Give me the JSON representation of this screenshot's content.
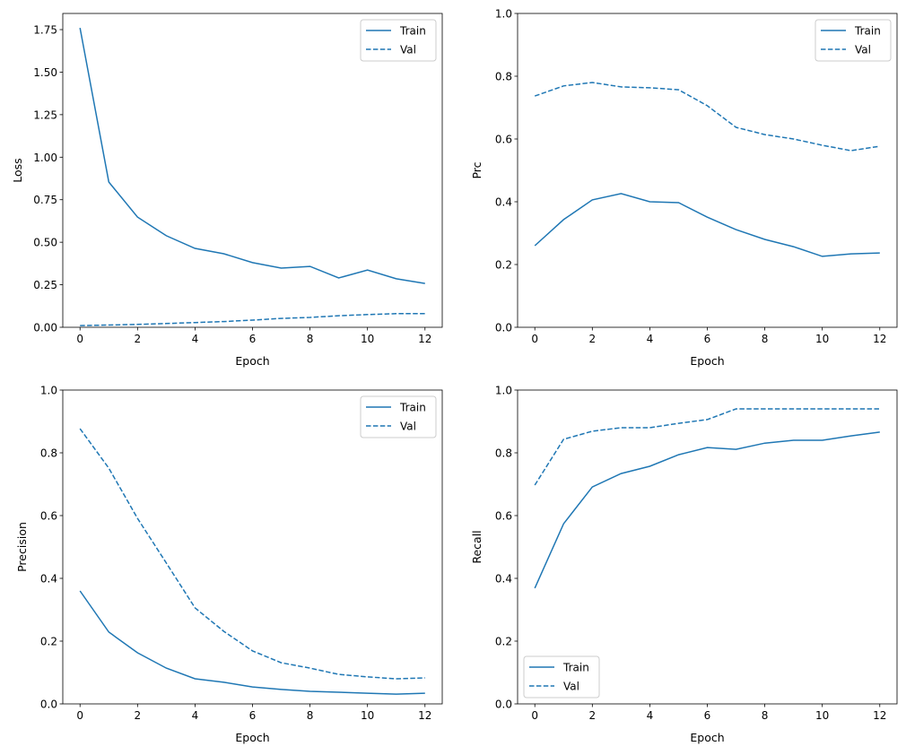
{
  "colors": {
    "series": "#1f77b4",
    "axis": "#000000",
    "legend_border": "#cccccc"
  },
  "chart_data": [
    {
      "type": "line",
      "xlabel": "Epoch",
      "ylabel": "Loss",
      "x": [
        0,
        1,
        2,
        3,
        4,
        5,
        6,
        7,
        8,
        9,
        10,
        11,
        12
      ],
      "xlim": [
        -0.6,
        12.6
      ],
      "ylim": [
        0,
        1.845
      ],
      "xticks": [
        0,
        2,
        4,
        6,
        8,
        10,
        12
      ],
      "yticks": [
        0,
        0.25,
        0.5,
        0.75,
        1.0,
        1.25,
        1.5,
        1.75
      ],
      "ytick_labels": [
        "0.00",
        "0.25",
        "0.50",
        "0.75",
        "1.00",
        "1.25",
        "1.50",
        "1.75"
      ],
      "grid": false,
      "legend": "upper right",
      "series": [
        {
          "name": "Train",
          "style": "solid",
          "values": [
            1.76,
            0.854,
            0.648,
            0.538,
            0.464,
            0.432,
            0.38,
            0.348,
            0.358,
            0.29,
            0.337,
            0.285,
            0.258
          ]
        },
        {
          "name": "Val",
          "style": "dashed",
          "values": [
            0.01,
            0.013,
            0.017,
            0.022,
            0.028,
            0.034,
            0.042,
            0.052,
            0.058,
            0.068,
            0.075,
            0.08,
            0.08
          ]
        }
      ]
    },
    {
      "type": "line",
      "xlabel": "Epoch",
      "ylabel": "Prc",
      "x": [
        0,
        1,
        2,
        3,
        4,
        5,
        6,
        7,
        8,
        9,
        10,
        11,
        12
      ],
      "xlim": [
        -0.6,
        12.6
      ],
      "ylim": [
        0,
        1
      ],
      "xticks": [
        0,
        2,
        4,
        6,
        8,
        10,
        12
      ],
      "yticks": [
        0,
        0.2,
        0.4,
        0.6,
        0.8,
        1.0
      ],
      "ytick_labels": [
        "0.0",
        "0.2",
        "0.4",
        "0.6",
        "0.8",
        "1.0"
      ],
      "grid": false,
      "legend": "upper right",
      "series": [
        {
          "name": "Train",
          "style": "solid",
          "values": [
            0.26,
            0.343,
            0.406,
            0.426,
            0.4,
            0.397,
            0.351,
            0.311,
            0.28,
            0.257,
            0.226,
            0.234,
            0.237
          ]
        },
        {
          "name": "Val",
          "style": "dashed",
          "values": [
            0.737,
            0.769,
            0.78,
            0.766,
            0.763,
            0.757,
            0.706,
            0.637,
            0.614,
            0.6,
            0.58,
            0.563,
            0.577
          ]
        }
      ]
    },
    {
      "type": "line",
      "xlabel": "Epoch",
      "ylabel": "Precision",
      "x": [
        0,
        1,
        2,
        3,
        4,
        5,
        6,
        7,
        8,
        9,
        10,
        11,
        12
      ],
      "xlim": [
        -0.6,
        12.6
      ],
      "ylim": [
        0,
        1
      ],
      "xticks": [
        0,
        2,
        4,
        6,
        8,
        10,
        12
      ],
      "yticks": [
        0,
        0.2,
        0.4,
        0.6,
        0.8,
        1.0
      ],
      "ytick_labels": [
        "0.0",
        "0.2",
        "0.4",
        "0.6",
        "0.8",
        "1.0"
      ],
      "grid": false,
      "legend": "upper right",
      "series": [
        {
          "name": "Train",
          "style": "solid",
          "values": [
            0.36,
            0.229,
            0.163,
            0.114,
            0.08,
            0.069,
            0.054,
            0.046,
            0.04,
            0.037,
            0.034,
            0.031,
            0.034
          ]
        },
        {
          "name": "Val",
          "style": "dashed",
          "values": [
            0.877,
            0.751,
            0.591,
            0.449,
            0.306,
            0.231,
            0.169,
            0.131,
            0.114,
            0.094,
            0.086,
            0.08,
            0.083
          ]
        }
      ]
    },
    {
      "type": "line",
      "xlabel": "Epoch",
      "ylabel": "Recall",
      "x": [
        0,
        1,
        2,
        3,
        4,
        5,
        6,
        7,
        8,
        9,
        10,
        11,
        12
      ],
      "xlim": [
        -0.6,
        12.6
      ],
      "ylim": [
        0,
        1
      ],
      "xticks": [
        0,
        2,
        4,
        6,
        8,
        10,
        12
      ],
      "yticks": [
        0,
        0.2,
        0.4,
        0.6,
        0.8,
        1.0
      ],
      "ytick_labels": [
        "0.0",
        "0.2",
        "0.4",
        "0.6",
        "0.8",
        "1.0"
      ],
      "grid": false,
      "legend": "lower left",
      "series": [
        {
          "name": "Train",
          "style": "solid",
          "values": [
            0.369,
            0.574,
            0.691,
            0.734,
            0.757,
            0.794,
            0.817,
            0.811,
            0.831,
            0.84,
            0.84,
            0.854,
            0.866
          ]
        },
        {
          "name": "Val",
          "style": "dashed",
          "values": [
            0.697,
            0.843,
            0.869,
            0.88,
            0.88,
            0.894,
            0.906,
            0.94,
            0.94,
            0.94,
            0.94,
            0.94,
            0.94
          ]
        }
      ]
    }
  ]
}
